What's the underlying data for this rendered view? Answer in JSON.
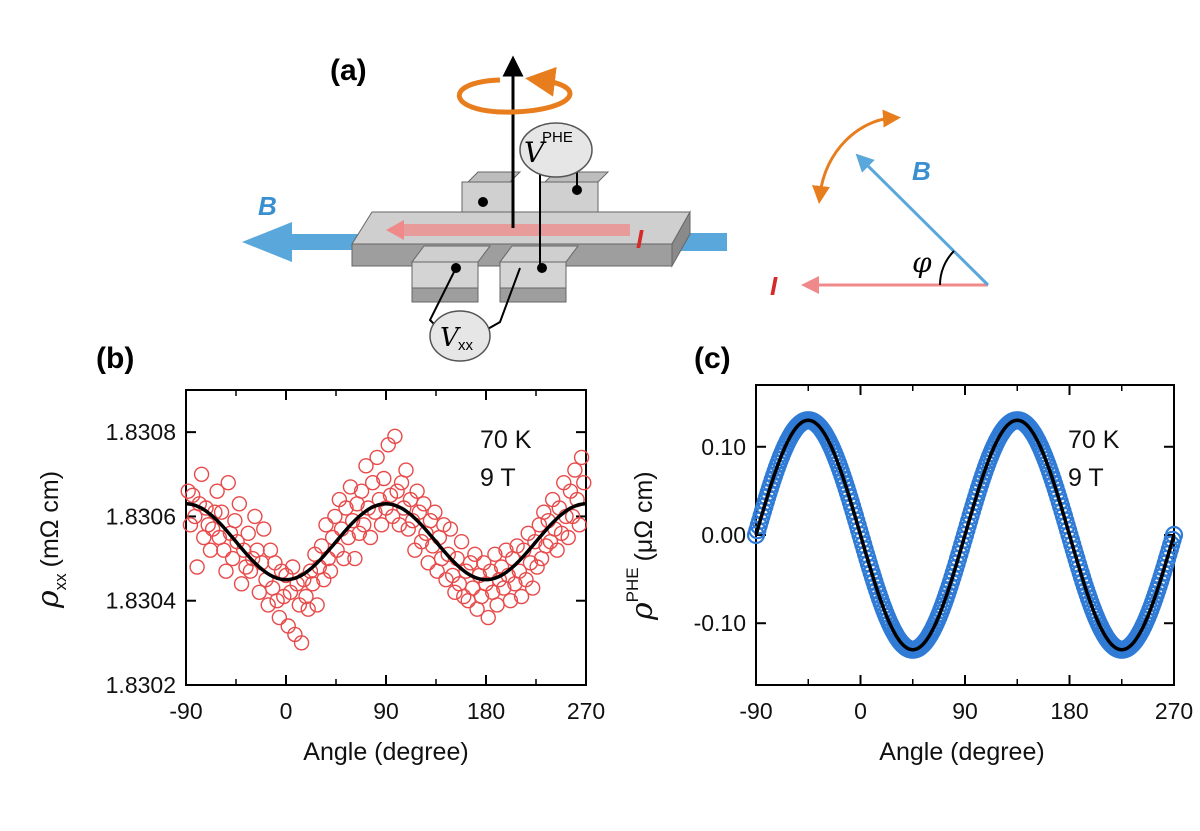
{
  "panel_a": {
    "label": "(a)",
    "field_label": "B",
    "current_label": "I",
    "vphe_symbol": "V",
    "vphe_superscript": "PHE",
    "vxx_symbol": "V",
    "vxx_subscript": "xx",
    "angle_symbol": "φ",
    "colors": {
      "field": "#5aa7dc",
      "current": "#f08a8a",
      "rotation": "#e87d1e",
      "device": "#c9c9c9"
    }
  },
  "chart_data": [
    {
      "type": "scatter",
      "panel_label": "(b)",
      "xlabel": "Angle (degree)",
      "ylabel_symbol": "ρ",
      "ylabel_subscript": "xx",
      "ylabel_unit": "(mΩ cm)",
      "xlim": [
        -90,
        270
      ],
      "ylim": [
        1.8302,
        1.8309
      ],
      "xticks": [
        -90,
        0,
        90,
        180,
        270
      ],
      "yticks": [
        1.8302,
        1.8304,
        1.8306,
        1.8308
      ],
      "ytick_labels": [
        "1.8302",
        "1.8304",
        "1.8306",
        "1.8308"
      ],
      "annotations": [
        "70 K",
        "9 T"
      ],
      "marker": "open-circle",
      "marker_color": "#e84a4a",
      "fit": {
        "color": "#000000",
        "form": "y = a + b*cos(2*(x - x0))",
        "a": 1.83054,
        "b": -9e-05,
        "x0": 0
      },
      "points": [
        [
          -88,
          1.83066
        ],
        [
          -86,
          1.83058
        ],
        [
          -84,
          1.83065
        ],
        [
          -82,
          1.8306
        ],
        [
          -80,
          1.83048
        ],
        [
          -78,
          1.83063
        ],
        [
          -76,
          1.8307
        ],
        [
          -74,
          1.83055
        ],
        [
          -72,
          1.83062
        ],
        [
          -70,
          1.83058
        ],
        [
          -68,
          1.83052
        ],
        [
          -66,
          1.83057
        ],
        [
          -64,
          1.83061
        ],
        [
          -62,
          1.83066
        ],
        [
          -60,
          1.83055
        ],
        [
          -58,
          1.83061
        ],
        [
          -56,
          1.83052
        ],
        [
          -54,
          1.83047
        ],
        [
          -52,
          1.83068
        ],
        [
          -50,
          1.83056
        ],
        [
          -48,
          1.8305
        ],
        [
          -46,
          1.83059
        ],
        [
          -44,
          1.83054
        ],
        [
          -42,
          1.83063
        ],
        [
          -40,
          1.83044
        ],
        [
          -38,
          1.83052
        ],
        [
          -36,
          1.83048
        ],
        [
          -34,
          1.83056
        ],
        [
          -32,
          1.83047
        ],
        [
          -30,
          1.8305
        ],
        [
          -28,
          1.8306
        ],
        [
          -26,
          1.83052
        ],
        [
          -24,
          1.83042
        ],
        [
          -22,
          1.83049
        ],
        [
          -20,
          1.83057
        ],
        [
          -18,
          1.83045
        ],
        [
          -16,
          1.83039
        ],
        [
          -14,
          1.83052
        ],
        [
          -12,
          1.83043
        ],
        [
          -10,
          1.83049
        ],
        [
          -8,
          1.8304
        ],
        [
          -6,
          1.83036
        ],
        [
          -4,
          1.83047
        ],
        [
          -2,
          1.83041
        ],
        [
          0,
          1.83046
        ],
        [
          2,
          1.83034
        ],
        [
          4,
          1.83042
        ],
        [
          6,
          1.83048
        ],
        [
          8,
          1.83032
        ],
        [
          10,
          1.83044
        ],
        [
          12,
          1.83039
        ],
        [
          14,
          1.8303
        ],
        [
          16,
          1.83045
        ],
        [
          18,
          1.83041
        ],
        [
          20,
          1.83038
        ],
        [
          22,
          1.83047
        ],
        [
          24,
          1.83044
        ],
        [
          26,
          1.83051
        ],
        [
          28,
          1.83039
        ],
        [
          30,
          1.83048
        ],
        [
          32,
          1.83053
        ],
        [
          34,
          1.83045
        ],
        [
          36,
          1.83058
        ],
        [
          38,
          1.8305
        ],
        [
          40,
          1.83047
        ],
        [
          42,
          1.83055
        ],
        [
          44,
          1.8306
        ],
        [
          46,
          1.83052
        ],
        [
          48,
          1.83064
        ],
        [
          50,
          1.83057
        ],
        [
          52,
          1.8305
        ],
        [
          54,
          1.83062
        ],
        [
          56,
          1.83055
        ],
        [
          58,
          1.83067
        ],
        [
          60,
          1.83059
        ],
        [
          62,
          1.8305
        ],
        [
          64,
          1.83063
        ],
        [
          66,
          1.83056
        ],
        [
          68,
          1.83066
        ],
        [
          70,
          1.83058
        ],
        [
          72,
          1.83072
        ],
        [
          74,
          1.83062
        ],
        [
          76,
          1.83055
        ],
        [
          78,
          1.83068
        ],
        [
          80,
          1.83061
        ],
        [
          82,
          1.83074
        ],
        [
          84,
          1.83064
        ],
        [
          86,
          1.83058
        ],
        [
          88,
          1.83069
        ],
        [
          90,
          1.83062
        ],
        [
          92,
          1.83077
        ],
        [
          94,
          1.83065
        ],
        [
          96,
          1.8306
        ],
        [
          98,
          1.83079
        ],
        [
          100,
          1.83066
        ],
        [
          102,
          1.83058
        ],
        [
          104,
          1.83068
        ],
        [
          106,
          1.83062
        ],
        [
          108,
          1.83071
        ],
        [
          110,
          1.83057
        ],
        [
          112,
          1.83064
        ],
        [
          114,
          1.83059
        ],
        [
          116,
          1.83052
        ],
        [
          118,
          1.83066
        ],
        [
          120,
          1.83061
        ],
        [
          122,
          1.83054
        ],
        [
          124,
          1.83063
        ],
        [
          126,
          1.83056
        ],
        [
          128,
          1.83049
        ],
        [
          130,
          1.83059
        ],
        [
          132,
          1.83053
        ],
        [
          134,
          1.83061
        ],
        [
          136,
          1.83047
        ],
        [
          138,
          1.83055
        ],
        [
          140,
          1.8305
        ],
        [
          142,
          1.83058
        ],
        [
          144,
          1.83045
        ],
        [
          146,
          1.83051
        ],
        [
          148,
          1.83057
        ],
        [
          150,
          1.83046
        ],
        [
          152,
          1.83042
        ],
        [
          154,
          1.8305
        ],
        [
          156,
          1.83044
        ],
        [
          158,
          1.83054
        ],
        [
          160,
          1.83041
        ],
        [
          162,
          1.83047
        ],
        [
          164,
          1.8304
        ],
        [
          166,
          1.83049
        ],
        [
          168,
          1.83043
        ],
        [
          170,
          1.83051
        ],
        [
          172,
          1.83038
        ],
        [
          174,
          1.83046
        ],
        [
          176,
          1.83041
        ],
        [
          178,
          1.83049
        ],
        [
          180,
          1.83044
        ],
        [
          182,
          1.83036
        ],
        [
          184,
          1.83047
        ],
        [
          186,
          1.83042
        ],
        [
          188,
          1.83051
        ],
        [
          190,
          1.83039
        ],
        [
          192,
          1.83045
        ],
        [
          194,
          1.83048
        ],
        [
          196,
          1.83043
        ],
        [
          198,
          1.83052
        ],
        [
          200,
          1.83046
        ],
        [
          202,
          1.8304
        ],
        [
          204,
          1.8305
        ],
        [
          206,
          1.83044
        ],
        [
          208,
          1.83053
        ],
        [
          210,
          1.83047
        ],
        [
          212,
          1.83041
        ],
        [
          214,
          1.83052
        ],
        [
          216,
          1.83045
        ],
        [
          218,
          1.83056
        ],
        [
          220,
          1.83049
        ],
        [
          222,
          1.83043
        ],
        [
          224,
          1.83054
        ],
        [
          226,
          1.83048
        ],
        [
          228,
          1.83058
        ],
        [
          230,
          1.8305
        ],
        [
          232,
          1.83061
        ],
        [
          234,
          1.83053
        ],
        [
          236,
          1.83059
        ],
        [
          238,
          1.83054
        ],
        [
          240,
          1.83064
        ],
        [
          242,
          1.83057
        ],
        [
          244,
          1.83052
        ],
        [
          246,
          1.83062
        ],
        [
          248,
          1.83056
        ],
        [
          250,
          1.83068
        ],
        [
          252,
          1.8306
        ],
        [
          254,
          1.83055
        ],
        [
          256,
          1.83066
        ],
        [
          258,
          1.8306
        ],
        [
          260,
          1.83071
        ],
        [
          262,
          1.83064
        ],
        [
          264,
          1.83058
        ],
        [
          266,
          1.83074
        ],
        [
          268,
          1.83068
        ]
      ]
    },
    {
      "type": "scatter",
      "panel_label": "(c)",
      "xlabel": "Angle (degree)",
      "ylabel_symbol": "ρ",
      "ylabel_superscript": "PHE",
      "ylabel_unit": "(μΩ cm)",
      "xlim": [
        -90,
        270
      ],
      "ylim": [
        -0.17,
        0.17
      ],
      "xticks": [
        -90,
        0,
        90,
        180,
        270
      ],
      "yticks": [
        -0.1,
        0.0,
        0.1
      ],
      "ytick_labels": [
        "-0.10",
        "0.00",
        "0.10"
      ],
      "annotations": [
        "70 K",
        "9 T"
      ],
      "marker": "open-circle",
      "marker_color": "#2f7bd6",
      "fit": {
        "color": "#000000",
        "form": "y = -A*sin(2x)",
        "amplitude": 0.13
      },
      "points_description_step_deg": 1.2
    }
  ]
}
